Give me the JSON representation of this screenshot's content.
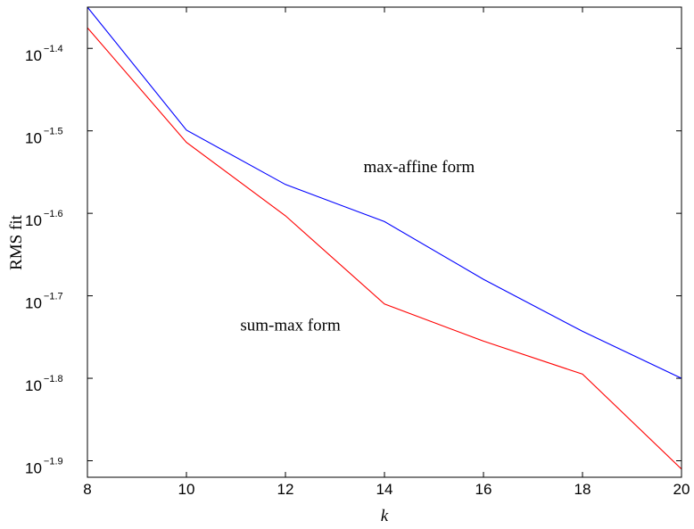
{
  "chart_data": {
    "type": "line",
    "title": "",
    "xlabel": "k",
    "ylabel": "RMS fit",
    "xlim": [
      8,
      20
    ],
    "ylim_log10": [
      -1.92,
      -1.35
    ],
    "yscale": "log",
    "grid": false,
    "legend": "none",
    "x_ticks": [
      8,
      10,
      12,
      14,
      16,
      18,
      20
    ],
    "y_ticks_log10": [
      {
        "base": "10",
        "exp": "−1.4",
        "value": -1.4
      },
      {
        "base": "10",
        "exp": "−1.5",
        "value": -1.5
      },
      {
        "base": "10",
        "exp": "−1.6",
        "value": -1.6
      },
      {
        "base": "10",
        "exp": "−1.7",
        "value": -1.7
      },
      {
        "base": "10",
        "exp": "−1.8",
        "value": -1.8
      },
      {
        "base": "10",
        "exp": "−1.9",
        "value": -1.9
      }
    ],
    "series": [
      {
        "color": "#0000ff",
        "x": [
          8,
          10,
          12,
          14,
          16,
          18,
          20
        ],
        "log10_y": [
          -1.35,
          -1.499,
          -1.565,
          -1.61,
          -1.68,
          -1.743,
          -1.8
        ]
      },
      {
        "color": "#ff0000",
        "x": [
          8,
          10,
          12,
          14,
          16,
          18,
          20
        ],
        "log10_y": [
          -1.375,
          -1.514,
          -1.603,
          -1.71,
          -1.755,
          -1.795,
          -1.91
        ]
      }
    ],
    "annotations": [
      {
        "text": "max-affine form",
        "x": 14.7,
        "log10_y": -1.55
      },
      {
        "text": "sum-max form",
        "x": 12.1,
        "log10_y": -1.742
      }
    ]
  }
}
